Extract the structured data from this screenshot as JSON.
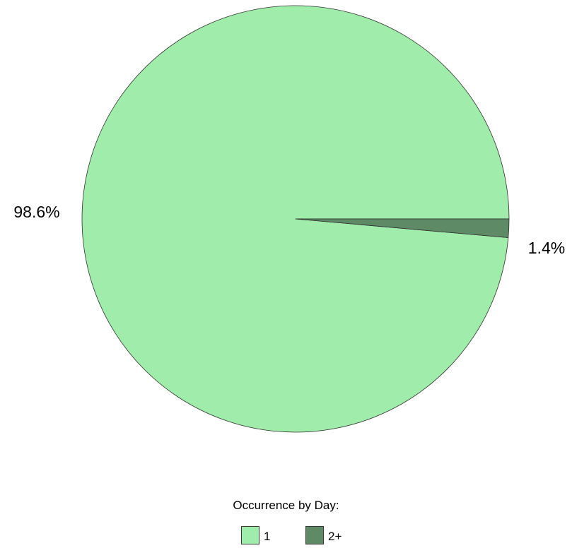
{
  "chart_data": {
    "type": "pie",
    "categories": [
      "1",
      "2+"
    ],
    "values": [
      98.6,
      1.4
    ],
    "data_labels": [
      "98.6%",
      "1.4%"
    ],
    "colors": [
      "#a0edab",
      "#5e8a65"
    ],
    "legend_title": "Occurrence by Day:",
    "legend_position": "bottom-center",
    "start_angle_deg": 0,
    "direction": "clockwise-from-3-oclock-for-small-slice"
  }
}
